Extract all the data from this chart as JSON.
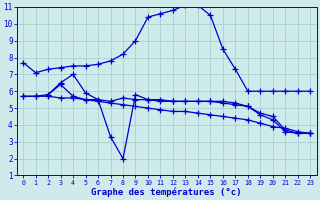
{
  "title": "Graphe des températures (°c)",
  "background_color": "#ceeaea",
  "grid_color": "#aacece",
  "line_color": "#0000cc",
  "xlim": [
    -0.5,
    23.5
  ],
  "ylim": [
    1,
    11
  ],
  "xticks": [
    0,
    1,
    2,
    3,
    4,
    5,
    6,
    7,
    8,
    9,
    10,
    11,
    12,
    13,
    14,
    15,
    16,
    17,
    18,
    19,
    20,
    21,
    22,
    23
  ],
  "yticks": [
    1,
    2,
    3,
    4,
    5,
    6,
    7,
    8,
    9,
    10,
    11
  ],
  "s1_x": [
    0,
    1,
    2,
    3,
    4,
    5,
    6,
    7,
    8,
    9,
    10,
    11,
    12,
    13,
    14,
    15,
    16,
    17,
    18,
    19,
    20,
    21,
    22,
    23
  ],
  "s1_y": [
    7.7,
    7.1,
    7.3,
    7.4,
    7.5,
    7.5,
    7.6,
    7.8,
    8.2,
    9.0,
    10.4,
    10.6,
    10.8,
    11.1,
    11.1,
    10.5,
    8.5,
    7.3,
    6.0,
    6.0,
    6.0,
    6.0,
    6.0,
    6.0
  ],
  "s2_x": [
    0,
    1,
    2,
    3,
    4,
    5,
    6,
    7,
    8,
    9,
    10,
    11,
    12,
    13,
    14,
    15,
    16,
    17,
    18,
    19,
    20,
    21,
    22,
    23
  ],
  "s2_y": [
    5.7,
    5.7,
    5.8,
    6.4,
    5.7,
    5.5,
    5.5,
    5.4,
    5.6,
    5.5,
    5.5,
    5.4,
    5.4,
    5.4,
    5.4,
    5.4,
    5.4,
    5.3,
    5.1,
    4.7,
    4.5,
    3.7,
    3.5,
    3.5
  ],
  "s3_x": [
    2,
    3,
    4,
    5,
    6,
    7,
    8,
    9,
    10,
    11,
    12,
    13,
    14,
    15,
    16,
    17,
    18,
    19,
    20,
    21,
    22,
    23
  ],
  "s3_y": [
    5.8,
    6.5,
    7.0,
    5.9,
    5.5,
    3.3,
    2.0,
    5.8,
    5.5,
    5.5,
    5.4,
    5.4,
    5.4,
    5.4,
    5.3,
    5.2,
    5.1,
    4.6,
    4.3,
    3.6,
    3.5,
    3.5
  ],
  "s4_x": [
    0,
    1,
    2,
    3,
    4,
    5,
    6,
    7,
    8,
    9,
    10,
    11,
    12,
    13,
    14,
    15,
    16,
    17,
    18,
    19,
    20,
    21,
    22,
    23
  ],
  "s4_y": [
    5.7,
    5.7,
    5.7,
    5.6,
    5.6,
    5.5,
    5.4,
    5.3,
    5.2,
    5.1,
    5.0,
    4.9,
    4.8,
    4.8,
    4.7,
    4.6,
    4.5,
    4.4,
    4.3,
    4.1,
    3.9,
    3.8,
    3.6,
    3.5
  ]
}
